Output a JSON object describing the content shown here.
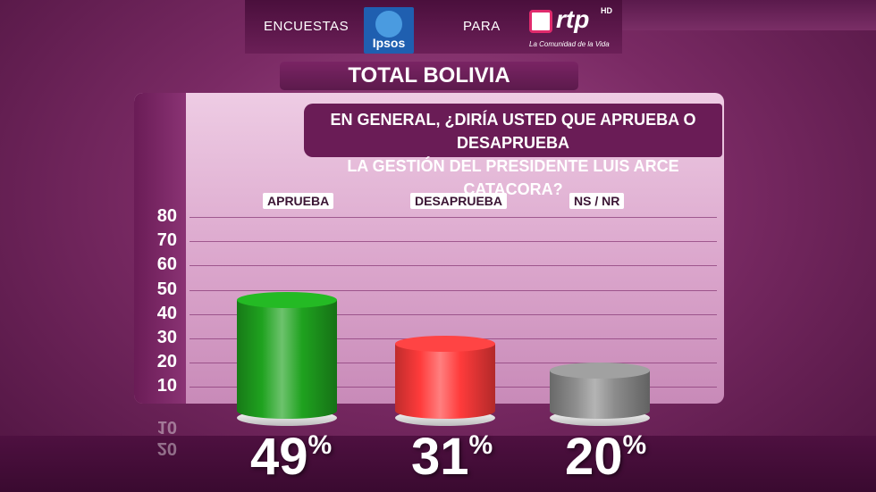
{
  "header": {
    "left_text": "ENCUESTAS",
    "ipsos_label": "Ipsos",
    "middle_text": "PARA",
    "rtp_label": "rtp",
    "rtp_hd": "HD",
    "rtp_tagline": "La Comunidad de la Vida"
  },
  "title": "TOTAL BOLIVIA",
  "question_line1": "EN GENERAL, ¿DIRÍA USTED QUE APRUEBA O DESAPRUEBA",
  "question_line2": "LA GESTIÓN DEL PRESIDENTE LUIS ARCE CATACORA?",
  "colors": {
    "aprueba": "#1fa21f",
    "desaprueba": "#ff3b3b",
    "nsnr": "#8c8c8c"
  },
  "chart_data": {
    "type": "bar",
    "title": "TOTAL BOLIVIA",
    "categories": [
      "APRUEBA",
      "DESAPRUEBA",
      "NS / NR"
    ],
    "values": [
      49,
      31,
      20
    ],
    "value_labels": [
      "49",
      "31",
      "20"
    ],
    "value_suffix": "%",
    "yticks": [
      "10",
      "20",
      "30",
      "40",
      "50",
      "60",
      "70",
      "80"
    ],
    "ylim": [
      0,
      80
    ],
    "grid": true
  }
}
